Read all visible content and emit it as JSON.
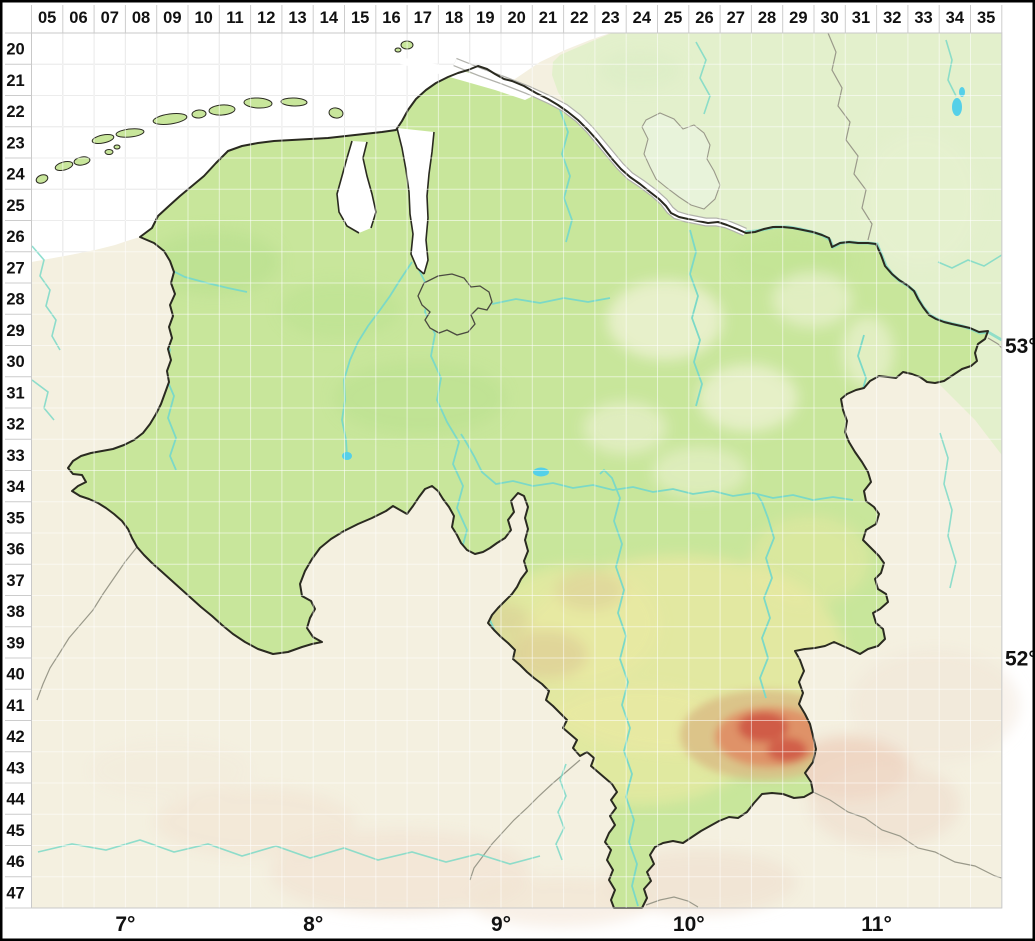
{
  "grid": {
    "column_labels": [
      "05",
      "06",
      "07",
      "08",
      "09",
      "10",
      "11",
      "12",
      "13",
      "14",
      "15",
      "16",
      "17",
      "18",
      "19",
      "20",
      "21",
      "22",
      "23",
      "24",
      "25",
      "26",
      "27",
      "28",
      "29",
      "30",
      "31",
      "32",
      "33",
      "34",
      "35"
    ],
    "row_labels": [
      "20",
      "21",
      "22",
      "23",
      "24",
      "25",
      "26",
      "27",
      "28",
      "29",
      "30",
      "31",
      "32",
      "33",
      "34",
      "35",
      "36",
      "37",
      "38",
      "39",
      "40",
      "41",
      "42",
      "43",
      "44",
      "45",
      "46",
      "47"
    ]
  },
  "graticule": {
    "longitude_labels": [
      "7°",
      "8°",
      "9°",
      "10°",
      "11°"
    ],
    "latitude_labels": [
      "53°",
      "52°"
    ]
  },
  "colors": {
    "sea": "#ffffff",
    "state_fill": "#c8e69b",
    "neighbor_land": "#f4f0e0",
    "north_neighbor_land": "#e3f0cc",
    "state_border": "#2a2a20",
    "national_border": "#9a998a",
    "river": "#7bd9c7",
    "lake": "#55d0e8",
    "highland_low": "#d9bd85",
    "highland_mid": "#e08d64",
    "highland_high": "#cf5a45",
    "grid_line_sea": "#d6d6d6",
    "grid_line_land": "rgba(255,255,255,0.55)",
    "label_text": "#111111",
    "frame": "#000000"
  }
}
